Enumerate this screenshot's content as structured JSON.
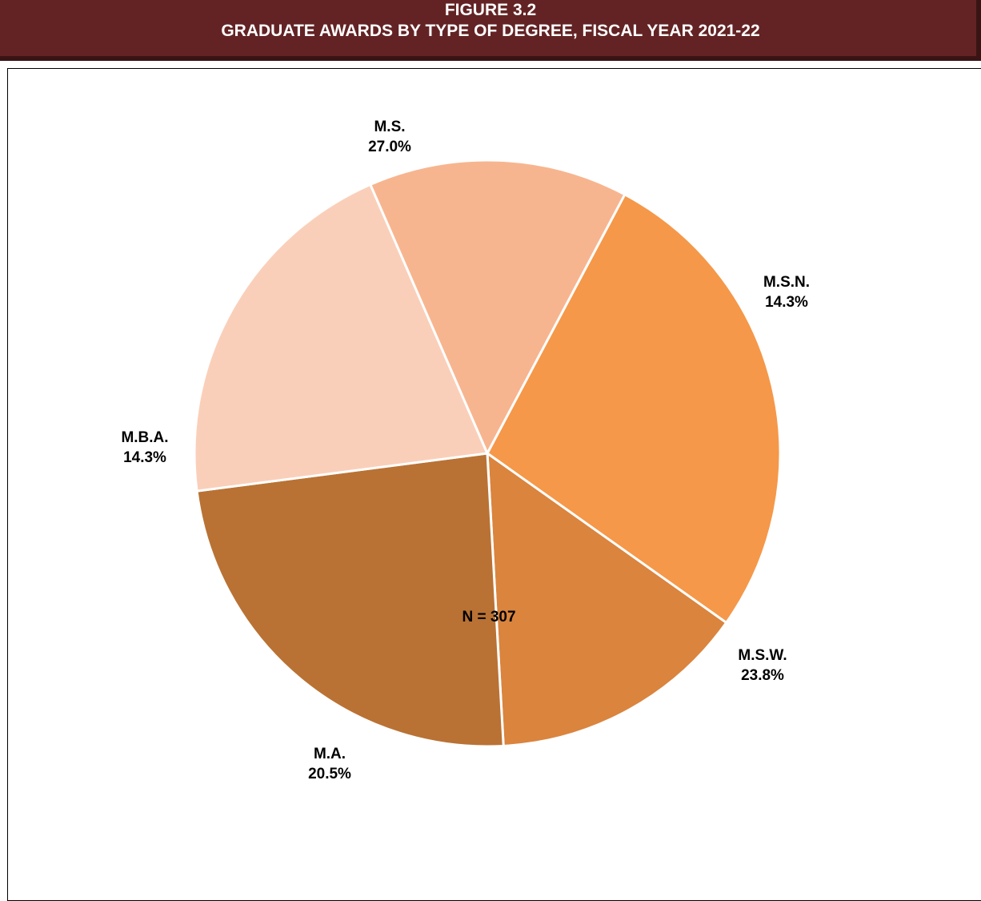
{
  "header": {
    "figure_label": "FIGURE 3.2",
    "title": "GRADUATE AWARDS BY TYPE OF DEGREE, FISCAL YEAR 2021-22"
  },
  "chart_data": {
    "type": "pie",
    "title": "GRADUATE AWARDS BY TYPE OF DEGREE, FISCAL YEAR 2021-22",
    "slices": [
      {
        "label": "M.S.",
        "value": 27.0,
        "value_label": "27.0%",
        "color": "#F59849"
      },
      {
        "label": "M.S.N.",
        "value": 14.3,
        "value_label": "14.3%",
        "color": "#DA843E"
      },
      {
        "label": "M.S.W.",
        "value": 23.8,
        "value_label": "23.8%",
        "color": "#B97234"
      },
      {
        "label": "M.A.",
        "value": 20.5,
        "value_label": "20.5%",
        "color": "#FACFB9"
      },
      {
        "label": "M.B.A.",
        "value": 14.3,
        "value_label": "14.3%",
        "color": "#F7B58F"
      }
    ],
    "start_angle_deg": -62,
    "direction": "clockwise",
    "note": "N = 307"
  }
}
